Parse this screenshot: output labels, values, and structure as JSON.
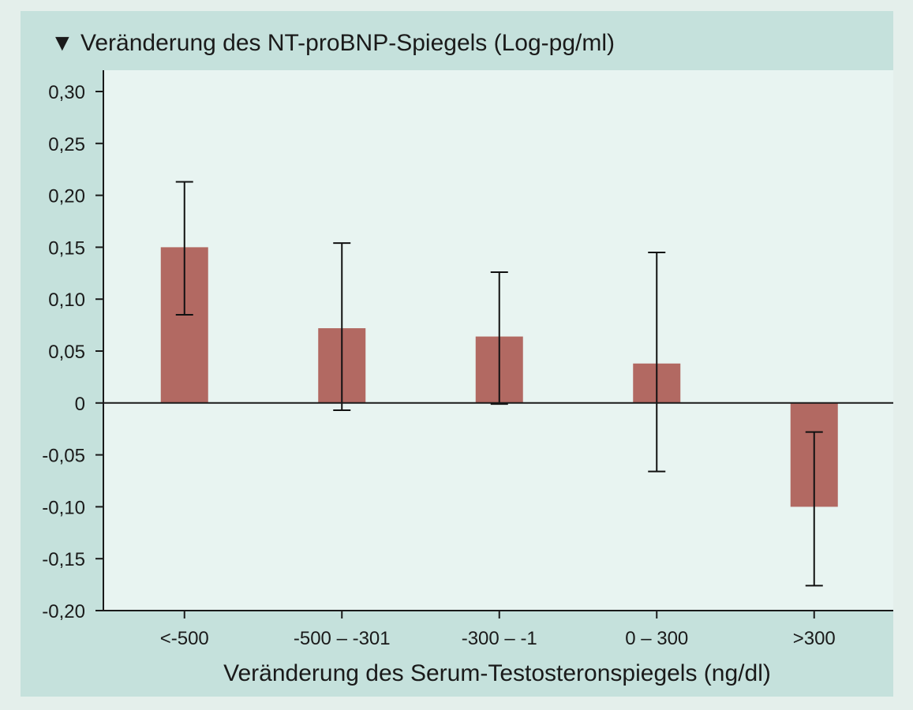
{
  "chart_data": {
    "type": "bar",
    "title": "Veränderung des NT-proBNP-Spiegels (Log-pg/ml)",
    "title_marker": "▼",
    "xlabel": "Veränderung des Serum-Testosteronspiegels (ng/dl)",
    "ylabel": "",
    "categories": [
      "<-500",
      "-500 – -301",
      "-300 – -1",
      "0 – 300",
      ">300"
    ],
    "values": [
      0.15,
      0.072,
      0.064,
      0.038,
      -0.1
    ],
    "error_low": [
      0.085,
      -0.007,
      -0.001,
      -0.066,
      -0.176
    ],
    "error_high": [
      0.213,
      0.154,
      0.126,
      0.145,
      -0.028
    ],
    "ylim": [
      -0.2,
      0.3
    ],
    "yticks": [
      0.3,
      0.25,
      0.2,
      0.15,
      0.1,
      0.05,
      0,
      -0.05,
      -0.1,
      -0.15,
      -0.2
    ],
    "ytick_labels": [
      "0,30",
      "0,25",
      "0,20",
      "0,15",
      "0,10",
      "0,05",
      "0",
      "-0,05",
      "-0,10",
      "-0,15",
      "-0,20"
    ],
    "grid": false,
    "colors": {
      "bar": "#b26962",
      "plot_background": "#e8f4f1",
      "panel_background": "#c5e1dc",
      "page_background": "#e4efeb",
      "axis": "#1a1a1a"
    }
  }
}
